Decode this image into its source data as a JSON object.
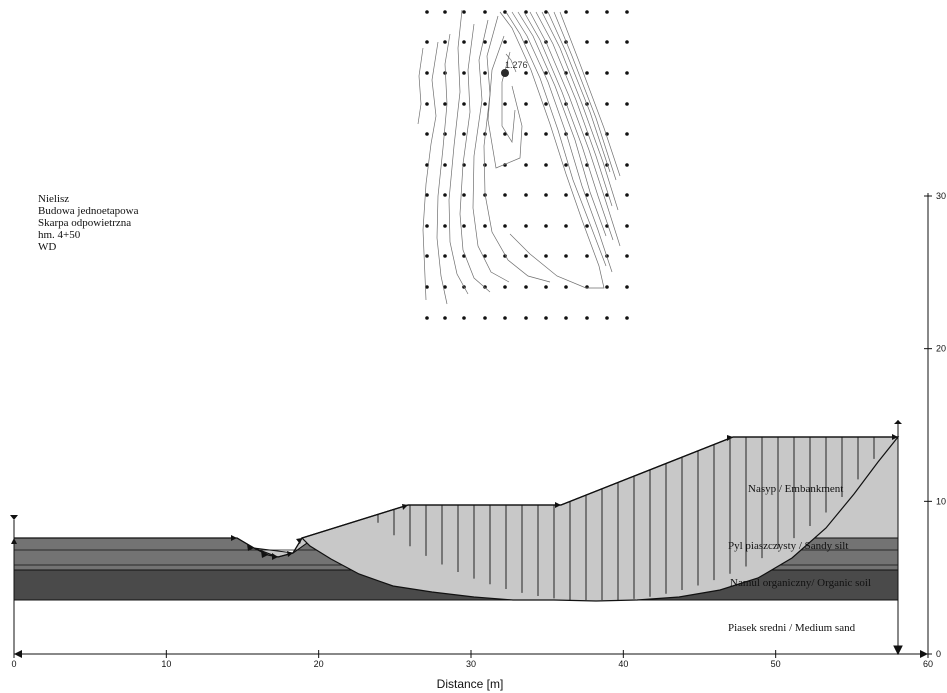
{
  "project_info": {
    "lines": [
      "Nielisz",
      "Budowa jednoetapowa",
      "Skarpa odpowietrzna",
      "hm. 4+50",
      "WD"
    ]
  },
  "grid": {
    "min_factor_label": "1.276"
  },
  "layers": {
    "embankment": "Nasyp / Embankment",
    "sandy_silt": "Pyl piaszczysty / Sandy silt",
    "organic_soil": "Namul organiczny/ Organic soil",
    "medium_sand": "Piasek sredni / Medium sand"
  },
  "axes": {
    "x_title": "Distance [m]",
    "x_ticks": [
      "0",
      "10",
      "20",
      "30",
      "40",
      "50",
      "60"
    ],
    "y_ticks": [
      "0",
      "10",
      "20",
      "30"
    ],
    "x_range": [
      0,
      60
    ],
    "y_range": [
      0,
      30
    ]
  },
  "colors": {
    "embankment_fill": "#c8c8c8",
    "upper_layer_fill": "#737373",
    "organic_fill": "#4a4a4a",
    "sand_fill": "#ffffff",
    "line": "#111111"
  }
}
